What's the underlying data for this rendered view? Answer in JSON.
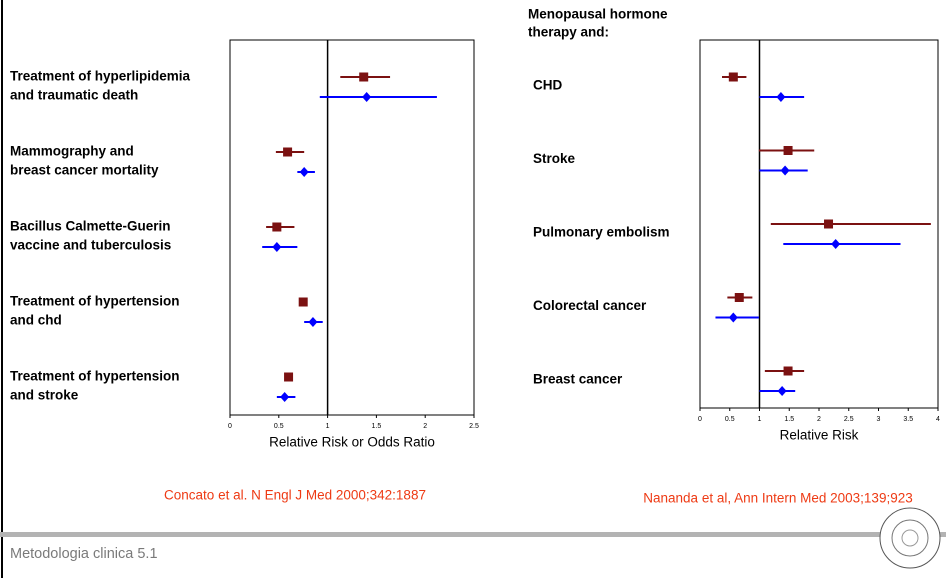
{
  "chart_data": [
    {
      "type": "forest",
      "categories": [
        [
          "Treatment of hyperlipidemia",
          "and traumatic death"
        ],
        [
          "Mammography and",
          "breast cancer mortality"
        ],
        [
          "Bacillus Calmette-Guerin",
          "vaccine and tuberculosis"
        ],
        [
          "Treatment of hypertension",
          " and chd"
        ],
        [
          "Treatment of hypertension",
          "and stroke"
        ]
      ],
      "series": [
        {
          "color": "#7b1111",
          "marker": "square",
          "values": [
            1.37,
            0.59,
            0.48,
            0.75,
            0.6
          ],
          "lower": [
            1.13,
            0.47,
            0.37,
            null,
            null
          ],
          "upper": [
            1.64,
            0.76,
            0.66,
            null,
            null
          ]
        },
        {
          "color": "#0000ff",
          "marker": "diamond",
          "values": [
            1.4,
            0.76,
            0.48,
            0.85,
            0.56
          ],
          "lower": [
            0.92,
            0.69,
            0.33,
            0.76,
            0.48
          ],
          "upper": [
            2.12,
            0.87,
            0.69,
            0.95,
            0.67
          ]
        }
      ],
      "xlim": [
        0,
        2.5
      ],
      "xticks": [
        0,
        0.5,
        1,
        1.5,
        2,
        2.5
      ],
      "reference": 1,
      "xlabel": "Relative Risk or Odds Ratio",
      "source": "Concato et al. N Engl J Med 2000;342:1887"
    },
    {
      "type": "forest",
      "title": [
        "Menopausal hormone",
        "therapy and:"
      ],
      "categories": [
        [
          "CHD"
        ],
        [
          "Stroke"
        ],
        [
          "Pulmonary embolism"
        ],
        [
          "Colorectal cancer"
        ],
        [
          "Breast cancer"
        ]
      ],
      "series": [
        {
          "color": "#7b1111",
          "marker": "square",
          "values": [
            0.56,
            1.48,
            2.16,
            0.66,
            1.48
          ],
          "lower": [
            0.37,
            0.99,
            1.19,
            0.46,
            1.09
          ],
          "upper": [
            0.78,
            1.92,
            3.88,
            0.88,
            1.75
          ]
        },
        {
          "color": "#0000ff",
          "marker": "diamond",
          "values": [
            1.36,
            1.43,
            2.28,
            0.56,
            1.38
          ],
          "lower": [
            1.0,
            1.0,
            1.4,
            0.26,
            1.0
          ],
          "upper": [
            1.75,
            1.81,
            3.37,
            0.99,
            1.6
          ]
        }
      ],
      "xlim": [
        0,
        4
      ],
      "xticks": [
        0,
        0.5,
        1,
        1.5,
        2,
        2.5,
        3,
        3.5,
        4
      ],
      "reference": 1,
      "xlabel": "Relative Risk",
      "source": "Nananda et al, Ann Intern Med 2003;139;923"
    }
  ],
  "footer": "Metodologia clinica 5.1"
}
